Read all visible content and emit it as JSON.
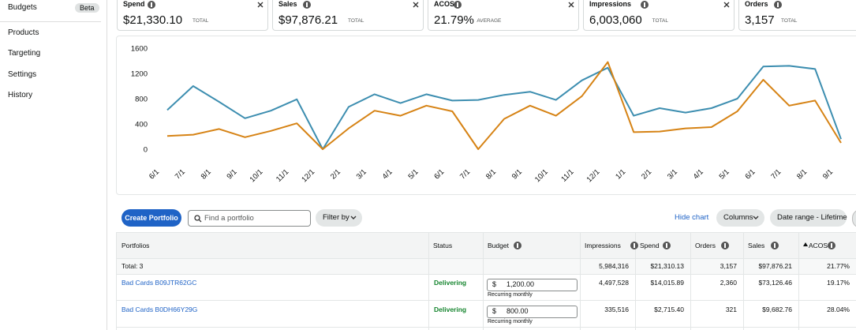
{
  "sidebar": {
    "items": [
      {
        "label": "Budgets",
        "badge": "Beta"
      },
      {
        "label": "Products"
      },
      {
        "label": "Targeting"
      },
      {
        "label": "Settings"
      },
      {
        "label": "History"
      }
    ]
  },
  "metrics": [
    {
      "label": "Spend",
      "value": "$21,330.10",
      "unit": "TOTAL"
    },
    {
      "label": "Sales",
      "value": "$97,876.21",
      "unit": "TOTAL"
    },
    {
      "label": "ACOS",
      "value": "21.79%",
      "unit": "AVERAGE"
    },
    {
      "label": "Impressions",
      "value": "6,003,060",
      "unit": "TOTAL"
    },
    {
      "label": "Orders",
      "value": "3,157",
      "unit": "TOTAL"
    }
  ],
  "chart_data": {
    "type": "line",
    "categories": [
      "6/1",
      "7/1",
      "8/1",
      "9/1",
      "10/1",
      "11/1",
      "12/1",
      "2/1",
      "3/1",
      "4/1",
      "5/1",
      "6/1",
      "7/1",
      "8/1",
      "9/1",
      "10/1",
      "11/1",
      "12/1",
      "1/1",
      "2/1",
      "3/1",
      "4/1",
      "5/1",
      "6/1",
      "7/1",
      "8/1",
      "9/1"
    ],
    "series": [
      {
        "color": "#3d8eb0",
        "values": [
          620,
          1000,
          750,
          490,
          610,
          790,
          0,
          670,
          870,
          730,
          870,
          770,
          780,
          860,
          910,
          780,
          1090,
          1290,
          530,
          650,
          580,
          650,
          800,
          1310,
          1320,
          1270,
          160
        ]
      },
      {
        "color": "#d68315",
        "values": [
          210,
          230,
          320,
          190,
          290,
          410,
          0,
          330,
          610,
          530,
          690,
          600,
          0,
          480,
          690,
          530,
          840,
          1380,
          270,
          280,
          330,
          350,
          600,
          1100,
          690,
          770,
          100
        ]
      }
    ],
    "ylim": [
      0,
      1600
    ],
    "yticks": [
      0,
      400,
      800,
      1200,
      1600
    ]
  },
  "toolbar": {
    "create": "Create Portfolio",
    "search_placeholder": "Find a portfolio",
    "filter": "Filter by",
    "hide_chart": "Hide chart",
    "columns": "Columns",
    "date_range": "Date range - Lifetime"
  },
  "table": {
    "columns": [
      "Portfolios",
      "Status",
      "Budget",
      "Impressions",
      "Spend",
      "Orders",
      "Sales",
      "ACOS"
    ],
    "total": {
      "label": "Total: 3",
      "impressions": "5,984,316",
      "spend": "$21,310.13",
      "orders": "3,157",
      "sales": "$97,876.21",
      "acos": "21.77%"
    },
    "rows": [
      {
        "name": "Bad Cards B09JTR62GC",
        "status": "Delivering",
        "currency": "$",
        "budget": "1,200.00",
        "budget_note": "Recurring monthly",
        "impressions": "4,497,528",
        "spend": "$14,015.89",
        "orders": "2,360",
        "sales": "$73,126.46",
        "acos": "19.17%"
      },
      {
        "name": "Bad Cards B0DH66Y29G",
        "status": "Delivering",
        "currency": "$",
        "budget": "800.00",
        "budget_note": "Recurring monthly",
        "impressions": "335,516",
        "spend": "$2,715.40",
        "orders": "321",
        "sales": "$9,682.76",
        "acos": "28.04%"
      }
    ]
  }
}
